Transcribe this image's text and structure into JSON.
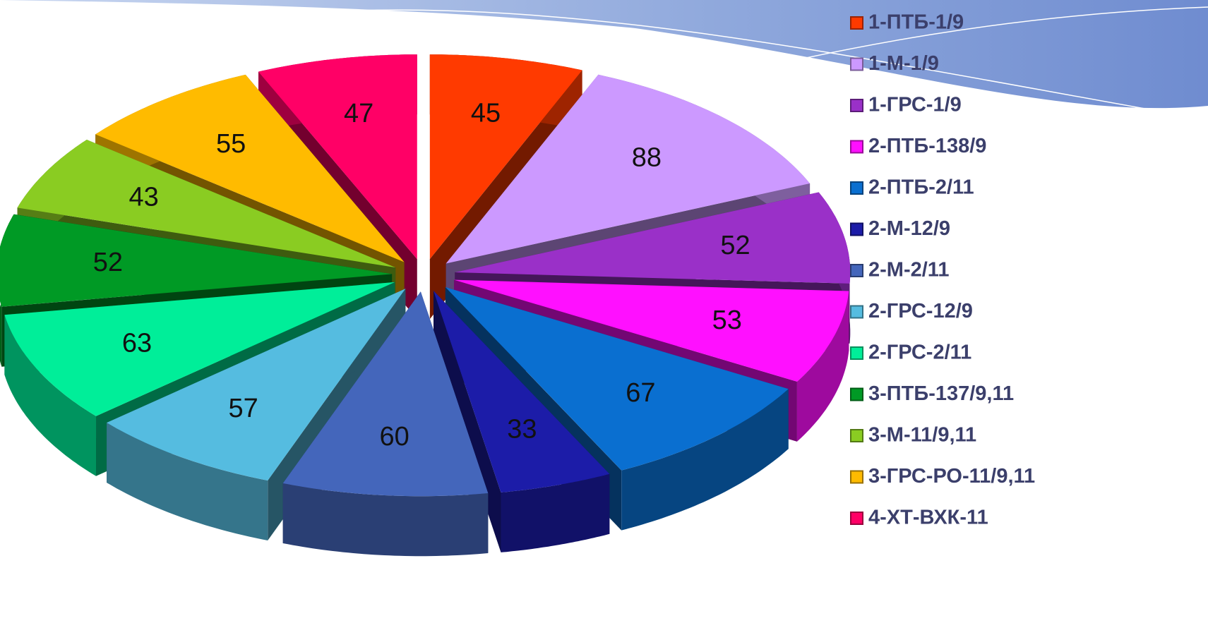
{
  "chart_data": {
    "type": "pie",
    "categories": [
      "1-ПТБ-1/9",
      "1-М-1/9",
      "1-ГРС-1/9",
      "2-ПТБ-138/9",
      "2-ПТБ-2/11",
      "2-М-12/9",
      "2-М-2/11",
      "2-ГРС-12/9",
      "2-ГРС-2/11",
      "3-ПТБ-137/9,11",
      "3-М-11/9,11",
      "3-ГРС-РО-11/9,11",
      "4-ХТ-ВХК-11"
    ],
    "values": [
      45,
      88,
      52,
      53,
      67,
      33,
      60,
      57,
      63,
      52,
      43,
      55,
      47
    ],
    "colors": [
      "#ff3a00",
      "#cc99ff",
      "#9a30c8",
      "#ff10ff",
      "#0a6fd0",
      "#1c1ca8",
      "#4466bb",
      "#55bce0",
      "#00ee99",
      "#009a25",
      "#8acc22",
      "#ffbb00",
      "#ff0066"
    ]
  }
}
